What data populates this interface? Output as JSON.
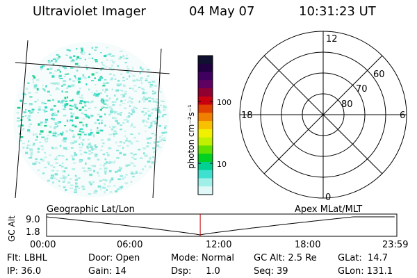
{
  "header": {
    "title": "Ultraviolet Imager",
    "date": "04 May 07",
    "time": "10:31:23 UT"
  },
  "colorbar": {
    "label": "photon cm⁻²s⁻¹",
    "ticks": [
      "100",
      "10"
    ],
    "colors": [
      "#101030",
      "#200040",
      "#400060",
      "#600060",
      "#900030",
      "#c80010",
      "#e04000",
      "#f08000",
      "#f8c000",
      "#f0f000",
      "#c0f000",
      "#60e000",
      "#00d020",
      "#00d090",
      "#40e0d0",
      "#a0f0e8",
      "#e0f8f8"
    ]
  },
  "polar": {
    "mlt_labels": {
      "top": "12",
      "left": "18",
      "right": "6",
      "bottom": "0"
    },
    "lat_labels": [
      "60",
      "70",
      "80"
    ]
  },
  "orbit": {
    "left_label": "Geographic Lat/Lon",
    "right_label": "Apex MLat/MLT",
    "axis_label": "GC Alt",
    "y_ticks": [
      "9.0",
      "1.8"
    ],
    "x_ticks": [
      "00:00",
      "06:00",
      "12:00",
      "18:00",
      "23:59"
    ],
    "current_time_marker": "10:31:23",
    "marker_color": "#c00000"
  },
  "footer": {
    "row1": [
      "Flt: LBHL",
      "Door: Open",
      "Mode: Normal",
      "GC Alt: 2.5 Re",
      "GLat:  14.7"
    ],
    "row2": [
      "IP: 36.0",
      "Gain: 14",
      "Dsp:     1.0",
      "Seq: 39",
      "GLon: 131.1"
    ]
  }
}
